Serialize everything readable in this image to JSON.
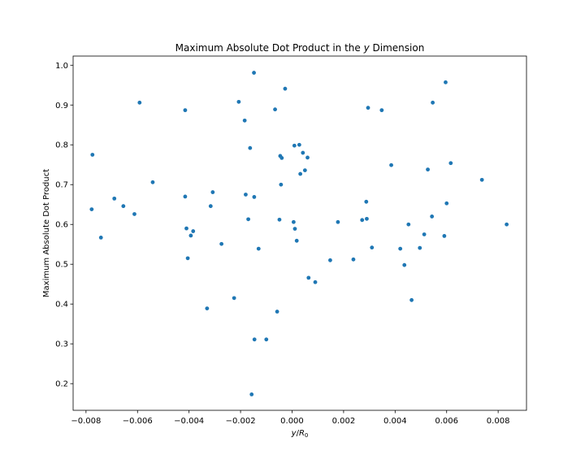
{
  "chart_data": {
    "type": "scatter",
    "title_main": "Maximum Absolute Dot Product in the ",
    "title_var": "y",
    "title_end": " Dimension",
    "xlabel_var": "y",
    "xlabel_slash": "/",
    "xlabel_R": "R",
    "xlabel_sub": "0",
    "ylabel": "Maximum Absolute Dot Product",
    "xlim": [
      -0.0085,
      0.0091
    ],
    "ylim": [
      0.133,
      1.023
    ],
    "xticks": [
      -0.008,
      -0.006,
      -0.004,
      -0.002,
      0.0,
      0.002,
      0.004,
      0.006,
      0.008
    ],
    "xtick_labels": [
      "−0.008",
      "−0.006",
      "−0.004",
      "−0.002",
      "0.000",
      "0.002",
      "0.004",
      "0.006",
      "0.008"
    ],
    "yticks": [
      0.2,
      0.3,
      0.4,
      0.5,
      0.6,
      0.7,
      0.8,
      0.9,
      1.0
    ],
    "ytick_labels": [
      "0.2",
      "0.3",
      "0.4",
      "0.5",
      "0.6",
      "0.7",
      "0.8",
      "0.9",
      "1.0"
    ],
    "grid": false,
    "marker_color": "#1f77b4",
    "points": [
      [
        -0.00775,
        0.775
      ],
      [
        -0.00778,
        0.638
      ],
      [
        -0.00742,
        0.567
      ],
      [
        -0.0069,
        0.665
      ],
      [
        -0.00655,
        0.646
      ],
      [
        -0.00612,
        0.626
      ],
      [
        -0.00592,
        0.906
      ],
      [
        -0.00541,
        0.706
      ],
      [
        -0.00415,
        0.887
      ],
      [
        -0.00415,
        0.67
      ],
      [
        -0.0041,
        0.59
      ],
      [
        -0.00405,
        0.515
      ],
      [
        -0.00393,
        0.572
      ],
      [
        -0.00384,
        0.583
      ],
      [
        -0.0033,
        0.389
      ],
      [
        -0.00316,
        0.646
      ],
      [
        -0.00308,
        0.681
      ],
      [
        -0.00274,
        0.551
      ],
      [
        -0.00225,
        0.415
      ],
      [
        -0.00207,
        0.908
      ],
      [
        -0.00184,
        0.861
      ],
      [
        -0.0018,
        0.675
      ],
      [
        -0.0017,
        0.613
      ],
      [
        -0.00163,
        0.792
      ],
      [
        -0.00157,
        0.173
      ],
      [
        -0.00148,
        0.981
      ],
      [
        -0.00147,
        0.669
      ],
      [
        -0.00146,
        0.311
      ],
      [
        -0.0013,
        0.539
      ],
      [
        -0.001,
        0.311
      ],
      [
        -0.00066,
        0.889
      ],
      [
        -0.00058,
        0.381
      ],
      [
        -0.00049,
        0.612
      ],
      [
        -0.00046,
        0.772
      ],
      [
        -0.00043,
        0.7
      ],
      [
        -0.0004,
        0.767
      ],
      [
        -0.00027,
        0.941
      ],
      [
        6e-05,
        0.606
      ],
      [
        9e-05,
        0.798
      ],
      [
        0.00011,
        0.589
      ],
      [
        0.00018,
        0.559
      ],
      [
        0.00028,
        0.8
      ],
      [
        0.00032,
        0.727
      ],
      [
        0.00042,
        0.78
      ],
      [
        0.0005,
        0.736
      ],
      [
        0.0006,
        0.768
      ],
      [
        0.00064,
        0.466
      ],
      [
        0.0009,
        0.455
      ],
      [
        0.00148,
        0.51
      ],
      [
        0.00178,
        0.606
      ],
      [
        0.00238,
        0.512
      ],
      [
        0.00272,
        0.611
      ],
      [
        0.00288,
        0.657
      ],
      [
        0.0029,
        0.614
      ],
      [
        0.00295,
        0.893
      ],
      [
        0.0031,
        0.542
      ],
      [
        0.00348,
        0.887
      ],
      [
        0.00385,
        0.749
      ],
      [
        0.0042,
        0.539
      ],
      [
        0.00436,
        0.498
      ],
      [
        0.00452,
        0.6
      ],
      [
        0.00464,
        0.41
      ],
      [
        0.00496,
        0.541
      ],
      [
        0.00513,
        0.575
      ],
      [
        0.00527,
        0.738
      ],
      [
        0.00543,
        0.62
      ],
      [
        0.00546,
        0.906
      ],
      [
        0.00591,
        0.571
      ],
      [
        0.00596,
        0.957
      ],
      [
        0.006,
        0.653
      ],
      [
        0.00616,
        0.754
      ],
      [
        0.00737,
        0.712
      ],
      [
        0.00833,
        0.6
      ]
    ]
  }
}
